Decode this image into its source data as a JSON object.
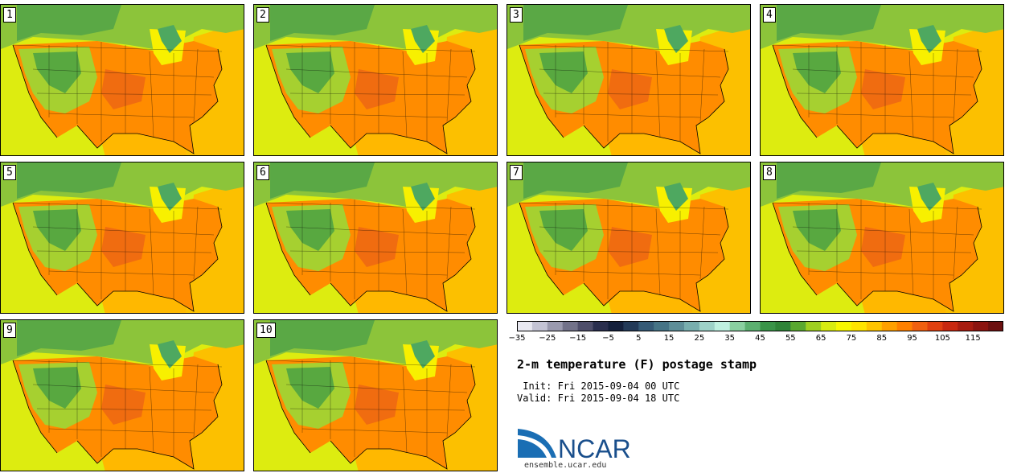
{
  "panels": [
    {
      "label": "1"
    },
    {
      "label": "2"
    },
    {
      "label": "3"
    },
    {
      "label": "4"
    },
    {
      "label": "5"
    },
    {
      "label": "6"
    },
    {
      "label": "7"
    },
    {
      "label": "8"
    },
    {
      "label": "9"
    },
    {
      "label": "10"
    }
  ],
  "colorbar": {
    "tick_labels": [
      "−35",
      "−25",
      "−15",
      "−5",
      "5",
      "15",
      "25",
      "35",
      "45",
      "55",
      "65",
      "75",
      "85",
      "95",
      "105",
      "115"
    ],
    "colors": [
      "#e8e8f0",
      "#c4c4d4",
      "#9a9aae",
      "#727289",
      "#4e4e6a",
      "#2a2f4e",
      "#14203c",
      "#233a58",
      "#355a76",
      "#467486",
      "#5e8e98",
      "#78aeae",
      "#9ed2c8",
      "#bff0e0",
      "#8ad0a0",
      "#5cb070",
      "#3a9448",
      "#2f8438",
      "#5aa830",
      "#9fcf20",
      "#d8ec10",
      "#f8f800",
      "#ffe400",
      "#ffc400",
      "#ffa000",
      "#ff8000",
      "#f06010",
      "#e04010",
      "#c82810",
      "#a81c10",
      "#8c1410",
      "#6c1010"
    ]
  },
  "title": "2-m temperature (F) postage stamp",
  "init_line": " Init: Fri 2015-09-04 00 UTC",
  "valid_line": "Valid: Fri 2015-09-04 18 UTC",
  "logo_text": "NCAR",
  "site_text": "ensemble.ucar.edu"
}
